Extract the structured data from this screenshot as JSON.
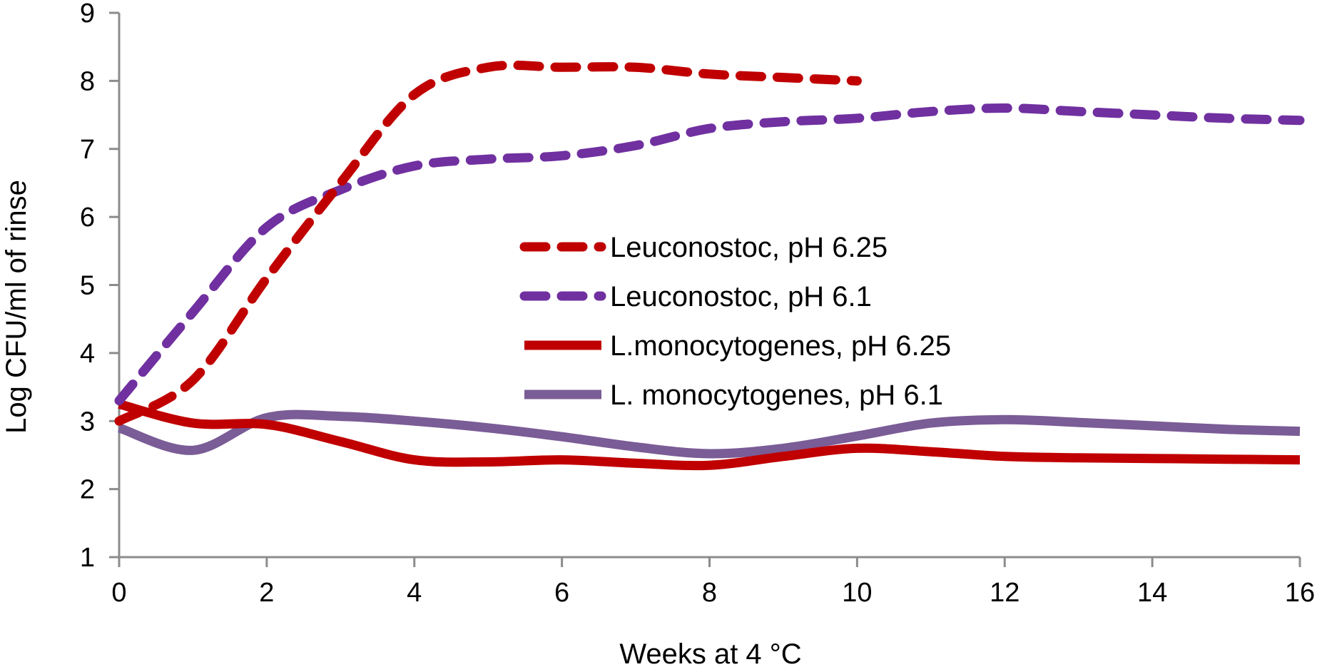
{
  "chart_data": {
    "type": "line",
    "title": "",
    "xlabel": "Weeks at 4 °C",
    "ylabel": "Log CFU/ml of rinse",
    "xlim": [
      0,
      16
    ],
    "ylim": [
      1,
      9
    ],
    "xticks": [
      0,
      2,
      4,
      6,
      8,
      10,
      12,
      14,
      16
    ],
    "yticks": [
      1,
      2,
      3,
      4,
      5,
      6,
      7,
      8,
      9
    ],
    "grid": false,
    "legend_position": "center",
    "series": [
      {
        "name": "Leuconostoc, pH 6.25",
        "color": "#c00000",
        "style": "dashed",
        "x": [
          0,
          1,
          2,
          3,
          4,
          5,
          6,
          7,
          8,
          9,
          10
        ],
        "y": [
          3.0,
          3.6,
          5.1,
          6.5,
          7.8,
          8.2,
          8.2,
          8.2,
          8.1,
          8.05,
          8.0
        ]
      },
      {
        "name": "Leuconostoc, pH 6.1",
        "color": "#7030a0",
        "style": "dashed",
        "x": [
          0,
          1,
          2,
          3,
          4,
          5,
          6,
          7,
          8,
          9,
          10,
          11,
          12,
          13,
          14,
          15,
          16
        ],
        "y": [
          3.3,
          4.6,
          5.85,
          6.4,
          6.75,
          6.85,
          6.9,
          7.05,
          7.3,
          7.4,
          7.45,
          7.55,
          7.6,
          7.55,
          7.5,
          7.45,
          7.42
        ]
      },
      {
        "name": "L.monocytogenes, pH 6.25",
        "color": "#c00000",
        "style": "solid",
        "x": [
          0,
          1,
          2,
          3,
          4,
          5,
          6,
          7,
          8,
          9,
          10,
          11,
          12,
          13,
          14,
          15,
          16
        ],
        "y": [
          3.25,
          2.97,
          2.95,
          2.7,
          2.43,
          2.4,
          2.43,
          2.38,
          2.35,
          2.48,
          2.6,
          2.55,
          2.48,
          2.46,
          2.45,
          2.44,
          2.43
        ]
      },
      {
        "name": "L. monocytogenes, pH 6.1",
        "color": "#7a5c96",
        "style": "solid",
        "x": [
          0,
          1,
          2,
          3,
          4,
          5,
          6,
          7,
          8,
          9,
          10,
          11,
          12,
          13,
          14,
          15,
          16
        ],
        "y": [
          2.9,
          2.57,
          3.05,
          3.07,
          3.0,
          2.9,
          2.77,
          2.62,
          2.52,
          2.6,
          2.78,
          2.97,
          3.02,
          2.98,
          2.93,
          2.88,
          2.85
        ]
      }
    ]
  }
}
